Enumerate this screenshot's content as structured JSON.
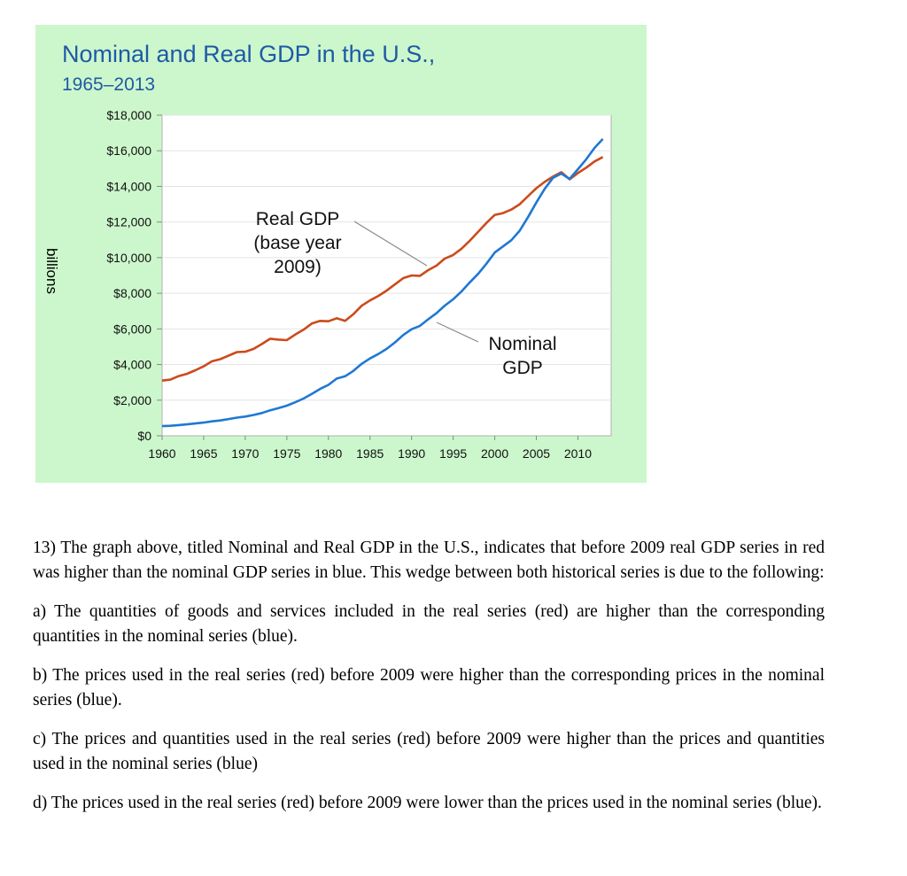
{
  "chart_data": {
    "type": "line",
    "title": "Nominal and Real GDP in the U.S.,",
    "subtitle": "1965–2013",
    "ylabel": "billions",
    "xlim": [
      1960,
      2014
    ],
    "ylim": [
      0,
      18000
    ],
    "x_ticks": [
      "1960",
      "1965",
      "1970",
      "1975",
      "1980",
      "1985",
      "1990",
      "1995",
      "2000",
      "2005",
      "2010"
    ],
    "y_ticks": [
      "$0",
      "$2,000",
      "$4,000",
      "$6,000",
      "$8,000",
      "$10,000",
      "$12,000",
      "$14,000",
      "$16,000",
      "$18,000"
    ],
    "grid": "horizontal",
    "series": [
      {
        "name": "Real GDP (base year 2009)",
        "color": "#cc4b1c",
        "x": [
          1960,
          1961,
          1962,
          1963,
          1964,
          1965,
          1966,
          1967,
          1968,
          1969,
          1970,
          1971,
          1972,
          1973,
          1974,
          1975,
          1976,
          1977,
          1978,
          1979,
          1980,
          1981,
          1982,
          1983,
          1984,
          1985,
          1986,
          1987,
          1988,
          1989,
          1990,
          1991,
          1992,
          1993,
          1994,
          1995,
          1996,
          1997,
          1998,
          1999,
          2000,
          2001,
          2002,
          2003,
          2004,
          2005,
          2006,
          2007,
          2008,
          2009,
          2010,
          2011,
          2012,
          2013
        ],
        "values": [
          3100,
          3150,
          3350,
          3480,
          3680,
          3900,
          4180,
          4300,
          4500,
          4700,
          4720,
          4880,
          5150,
          5450,
          5400,
          5370,
          5680,
          5950,
          6300,
          6450,
          6430,
          6600,
          6450,
          6820,
          7300,
          7600,
          7850,
          8150,
          8500,
          8850,
          9000,
          8980,
          9300,
          9550,
          9950,
          10150,
          10500,
          10950,
          11450,
          11950,
          12400,
          12500,
          12700,
          13000,
          13450,
          13900,
          14250,
          14550,
          14800,
          14400,
          14750,
          15050,
          15400,
          15650
        ]
      },
      {
        "name": "Nominal GDP",
        "color": "#1f78d4",
        "x": [
          1960,
          1961,
          1962,
          1963,
          1964,
          1965,
          1966,
          1967,
          1968,
          1969,
          1970,
          1971,
          1972,
          1973,
          1974,
          1975,
          1976,
          1977,
          1978,
          1979,
          1980,
          1981,
          1982,
          1983,
          1984,
          1985,
          1986,
          1987,
          1988,
          1989,
          1990,
          1991,
          1992,
          1993,
          1994,
          1995,
          1996,
          1997,
          1998,
          1999,
          2000,
          2001,
          2002,
          2003,
          2004,
          2005,
          2006,
          2007,
          2008,
          2009,
          2010,
          2011,
          2012,
          2013
        ],
        "values": [
          540,
          560,
          600,
          640,
          690,
          740,
          810,
          860,
          940,
          1020,
          1080,
          1170,
          1280,
          1430,
          1550,
          1690,
          1880,
          2090,
          2350,
          2630,
          2860,
          3210,
          3340,
          3640,
          4040,
          4340,
          4590,
          4880,
          5240,
          5660,
          5980,
          6170,
          6540,
          6880,
          7310,
          7660,
          8100,
          8610,
          9090,
          9660,
          10290,
          10630,
          10980,
          11510,
          12270,
          13090,
          13860,
          14480,
          14720,
          14420,
          14960,
          15520,
          16160,
          16660
        ]
      }
    ],
    "annotations": [
      {
        "text_lines": [
          "Real GDP",
          "(base year",
          "2009)"
        ],
        "points_to": "Real GDP"
      },
      {
        "text_lines": [
          "Nominal",
          "GDP"
        ],
        "points_to": "Nominal GDP"
      }
    ]
  },
  "question": {
    "stem": "13) The graph above, titled Nominal and Real GDP in the U.S., indicates that before 2009 real GDP series in red was higher than the nominal GDP series in blue. This wedge between both historical series is due to the following:",
    "option_a": "a) The quantities of goods and services included in the real series (red) are higher than the corresponding quantities in the nominal series (blue).",
    "option_b": "b) The prices used in the real series (red) before 2009 were higher than the corresponding prices in the nominal series (blue).",
    "option_c": "c) The prices and quantities used in the real series (red) before 2009 were higher than the prices and quantities used in the nominal series (blue)",
    "option_d": "d) The prices used in the real series (red) before 2009 were lower than the prices used in the nominal series (blue)."
  }
}
